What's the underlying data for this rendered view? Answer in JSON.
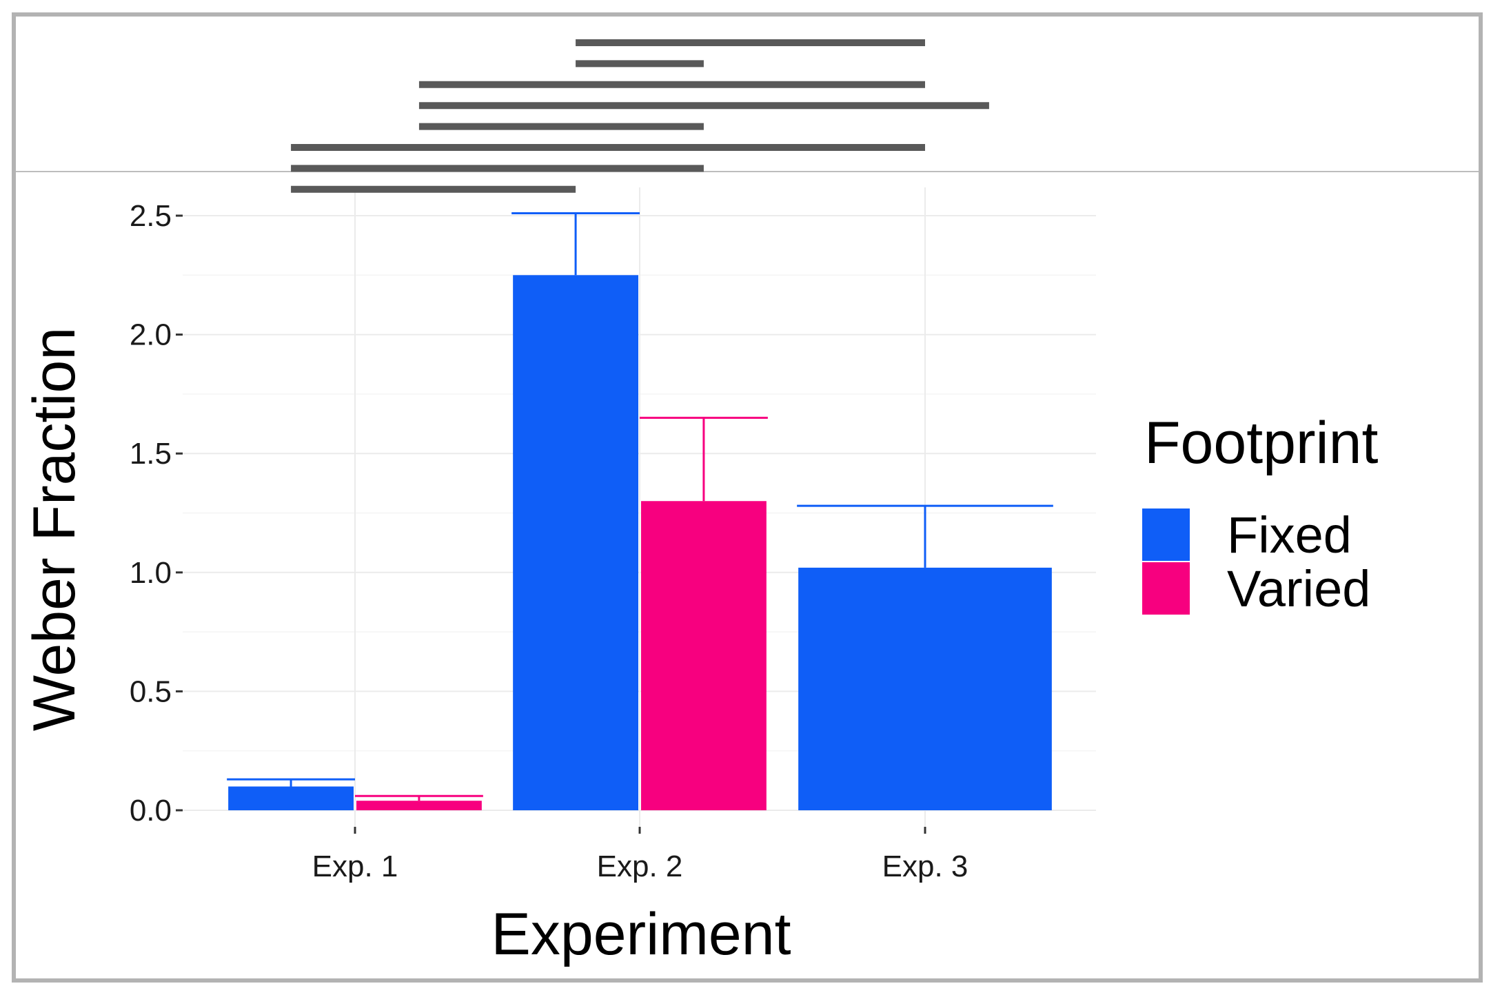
{
  "chart_data": {
    "type": "bar",
    "title": "",
    "xlabel": "Experiment",
    "ylabel": "Weber Fraction",
    "categories": [
      "Exp. 1",
      "Exp. 2",
      "Exp. 3"
    ],
    "ylim": [
      -0.05,
      2.6
    ],
    "yticks": [
      "0.0",
      "0.5",
      "1.0",
      "1.5",
      "2.0",
      "2.5"
    ],
    "ytick_values": [
      0,
      0.5,
      1.0,
      1.5,
      2.0,
      2.5
    ],
    "grid": true,
    "legend_title": "Footprint",
    "legend_position": "right",
    "series": [
      {
        "name": "Fixed",
        "color": "#0f5ef7",
        "values": [
          0.1,
          2.25,
          1.02
        ],
        "errors": [
          0.03,
          0.26,
          0.26
        ]
      },
      {
        "name": "Varied",
        "color": "#f7007f",
        "values": [
          0.04,
          1.3,
          null
        ],
        "errors": [
          0.02,
          0.35,
          null
        ]
      }
    ],
    "comparisons": [
      {
        "from": "Exp. 2 Fixed",
        "to": "Exp. 3 Fixed"
      },
      {
        "from": "Exp. 2 Fixed",
        "to": "Exp. 2 Varied"
      },
      {
        "from": "Exp. 1 Varied",
        "to": "Exp. 3 Fixed"
      },
      {
        "from": "Exp. 1 Varied",
        "to": "Exp. 3 Varied"
      },
      {
        "from": "Exp. 1 Varied",
        "to": "Exp. 2 Varied"
      },
      {
        "from": "Exp. 1 Fixed",
        "to": "Exp. 3 Fixed"
      },
      {
        "from": "Exp. 1 Fixed",
        "to": "Exp. 2 Varied"
      },
      {
        "from": "Exp. 1 Fixed",
        "to": "Exp. 2 Fixed"
      }
    ]
  }
}
